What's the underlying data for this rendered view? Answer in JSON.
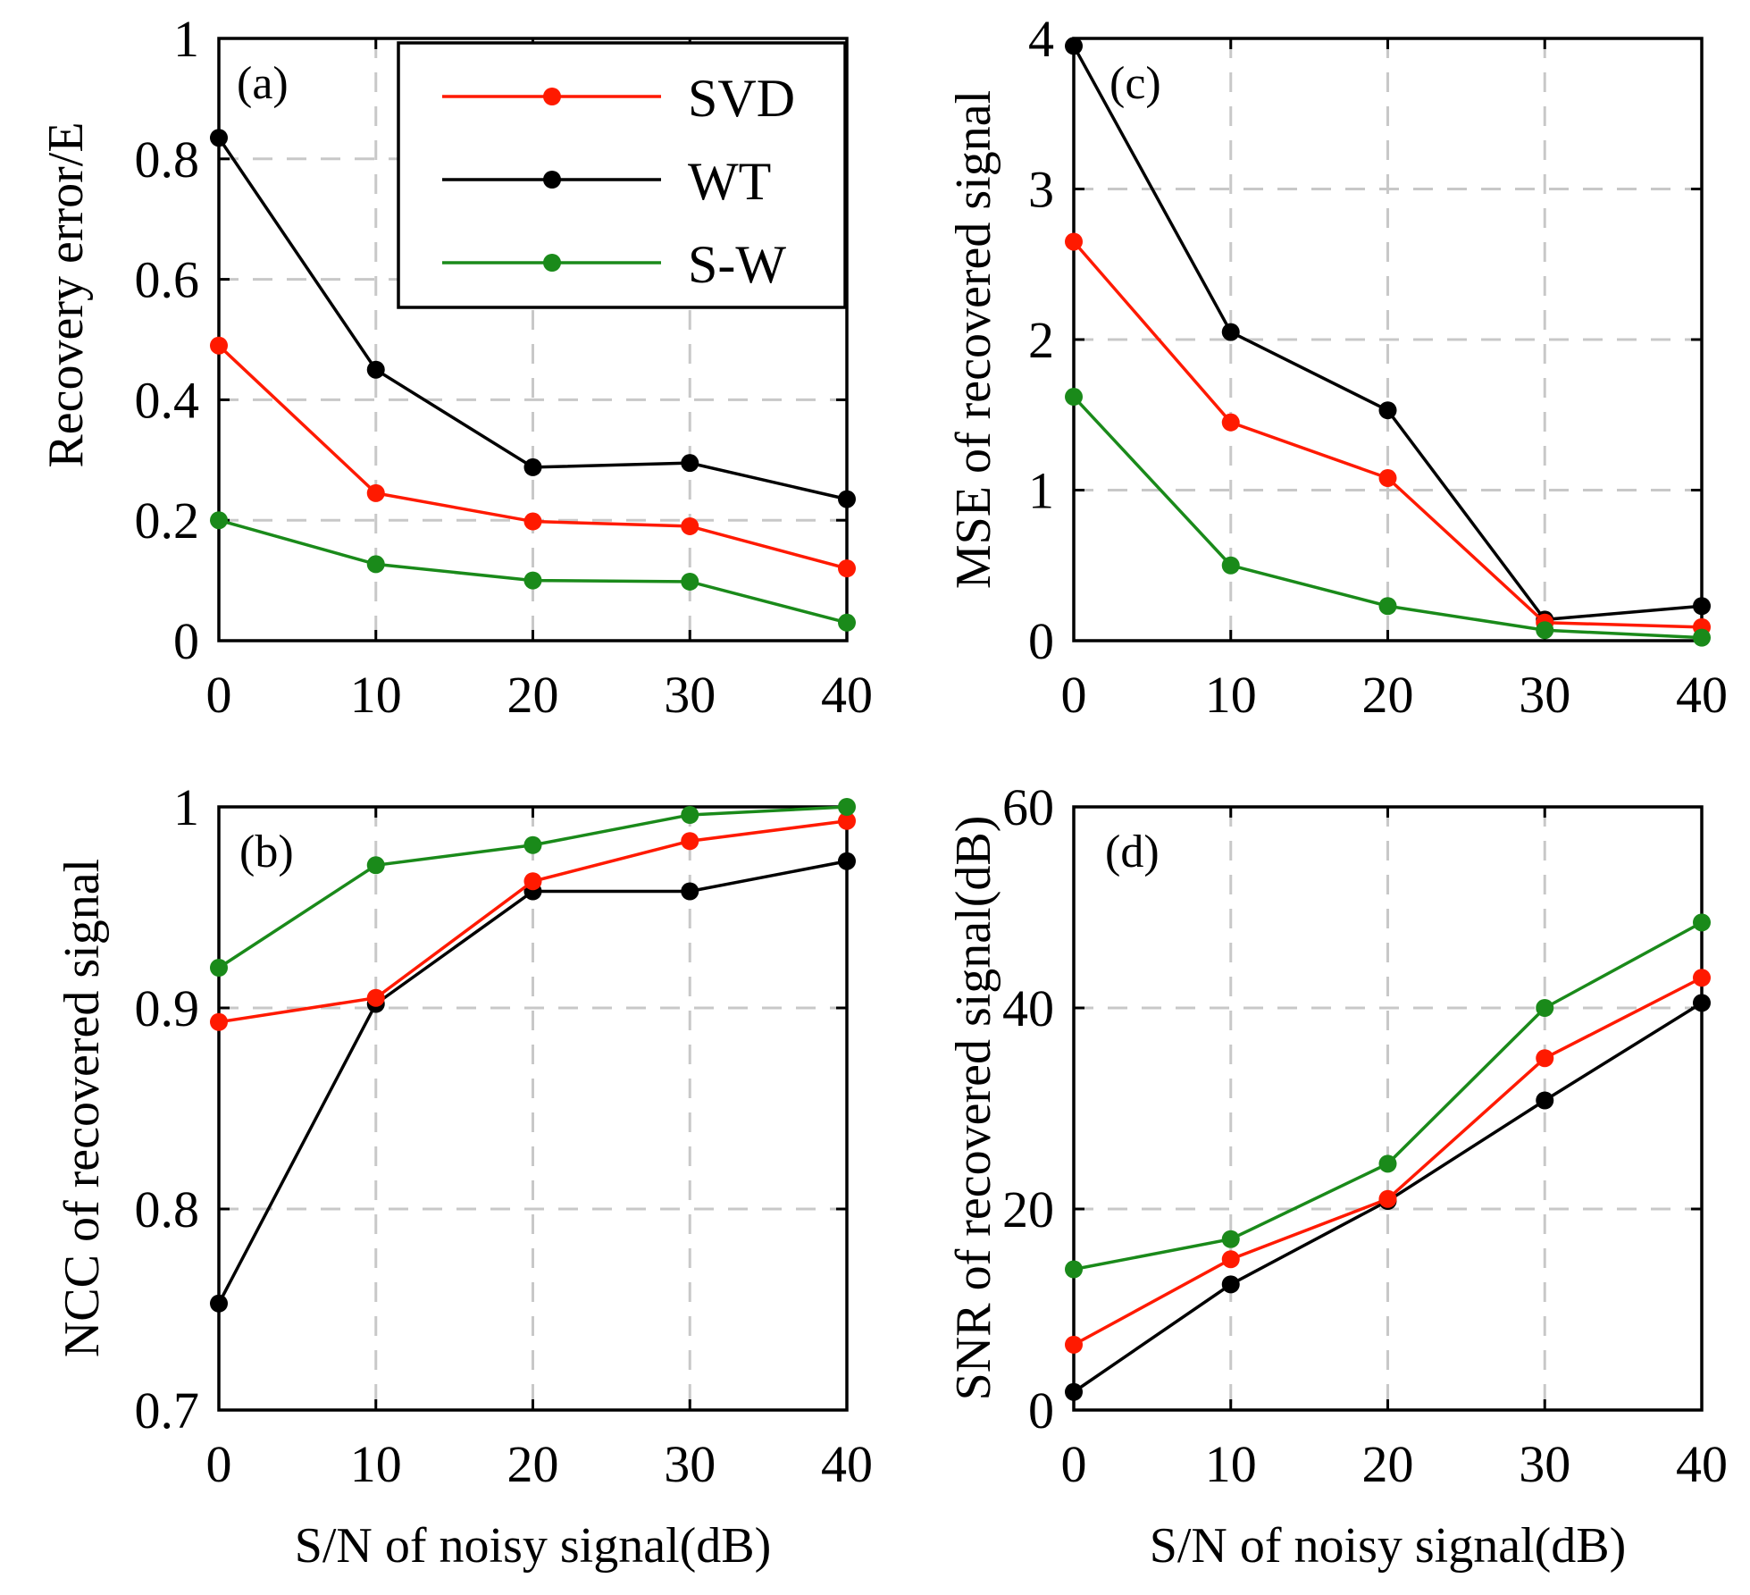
{
  "colors": {
    "SVD": "#ff1a00",
    "WT": "#000000",
    "S-W": "#1a8a1a"
  },
  "legend": {
    "items": [
      {
        "name": "SVD",
        "label": "SVD"
      },
      {
        "name": "WT",
        "label": "WT"
      },
      {
        "name": "S-W",
        "label": "S-W"
      }
    ]
  },
  "chart_data": [
    {
      "id": "a",
      "type": "line",
      "panel_label": "(a)",
      "xlabel": "",
      "ylabel": "Recovery error/E",
      "x": [
        0,
        10,
        20,
        30,
        40
      ],
      "x_tick_labels": [
        "0",
        "10",
        "20",
        "30",
        "40"
      ],
      "xlim": [
        0,
        40
      ],
      "ylim": [
        0,
        1
      ],
      "y_ticks": [
        0,
        0.2,
        0.4,
        0.6,
        0.8,
        1
      ],
      "y_tick_labels": [
        "0",
        "0.2",
        "0.4",
        "0.6",
        "0.8",
        "1"
      ],
      "grid": true,
      "legend_position": "top-center",
      "series": [
        {
          "name": "SVD",
          "values": [
            0.49,
            0.245,
            0.198,
            0.19,
            0.12
          ]
        },
        {
          "name": "WT",
          "values": [
            0.835,
            0.45,
            0.288,
            0.295,
            0.235
          ]
        },
        {
          "name": "S-W",
          "values": [
            0.2,
            0.127,
            0.1,
            0.098,
            0.03
          ]
        }
      ]
    },
    {
      "id": "c",
      "type": "line",
      "panel_label": "(c)",
      "xlabel": "",
      "ylabel": "MSE of recovered signal",
      "x": [
        0,
        10,
        20,
        30,
        40
      ],
      "x_tick_labels": [
        "0",
        "10",
        "20",
        "30",
        "40"
      ],
      "xlim": [
        0,
        40
      ],
      "ylim": [
        0,
        4
      ],
      "y_ticks": [
        0,
        1,
        2,
        3,
        4
      ],
      "y_tick_labels": [
        "0",
        "1",
        "2",
        "3",
        "4"
      ],
      "grid": true,
      "series": [
        {
          "name": "SVD",
          "values": [
            2.65,
            1.45,
            1.08,
            0.12,
            0.09
          ]
        },
        {
          "name": "WT",
          "values": [
            3.95,
            2.05,
            1.53,
            0.14,
            0.23
          ]
        },
        {
          "name": "S-W",
          "values": [
            1.62,
            0.5,
            0.23,
            0.07,
            0.02
          ]
        }
      ]
    },
    {
      "id": "b",
      "type": "line",
      "panel_label": "(b)",
      "xlabel": "S/N of noisy signal(dB)",
      "ylabel": "NCC of recovered signal",
      "x": [
        0,
        10,
        20,
        30,
        40
      ],
      "x_tick_labels": [
        "0",
        "10",
        "20",
        "30",
        "40"
      ],
      "xlim": [
        0,
        40
      ],
      "ylim": [
        0.7,
        1
      ],
      "y_ticks": [
        0.7,
        0.8,
        0.9,
        1
      ],
      "y_tick_labels": [
        "0.7",
        "0.8",
        "0.9",
        "1"
      ],
      "grid": true,
      "series": [
        {
          "name": "SVD",
          "values": [
            0.893,
            0.905,
            0.963,
            0.983,
            0.993
          ]
        },
        {
          "name": "WT",
          "values": [
            0.753,
            0.902,
            0.958,
            0.958,
            0.973
          ]
        },
        {
          "name": "S-W",
          "values": [
            0.92,
            0.971,
            0.981,
            0.996,
            1.0
          ]
        }
      ]
    },
    {
      "id": "d",
      "type": "line",
      "panel_label": "(d)",
      "xlabel": "S/N of noisy signal(dB)",
      "ylabel": "SNR of recovered signal(dB)",
      "x": [
        0,
        10,
        20,
        30,
        40
      ],
      "x_tick_labels": [
        "0",
        "10",
        "20",
        "30",
        "40"
      ],
      "xlim": [
        0,
        40
      ],
      "ylim": [
        0,
        60
      ],
      "y_ticks": [
        0,
        20,
        40,
        60
      ],
      "y_tick_labels": [
        "0",
        "20",
        "40",
        "60"
      ],
      "grid": true,
      "series": [
        {
          "name": "SVD",
          "values": [
            6.5,
            15,
            21,
            35,
            43
          ]
        },
        {
          "name": "WT",
          "values": [
            1.8,
            12.5,
            20.8,
            30.8,
            40.5
          ]
        },
        {
          "name": "S-W",
          "values": [
            14,
            17,
            24.5,
            40,
            48.5
          ]
        }
      ]
    }
  ]
}
